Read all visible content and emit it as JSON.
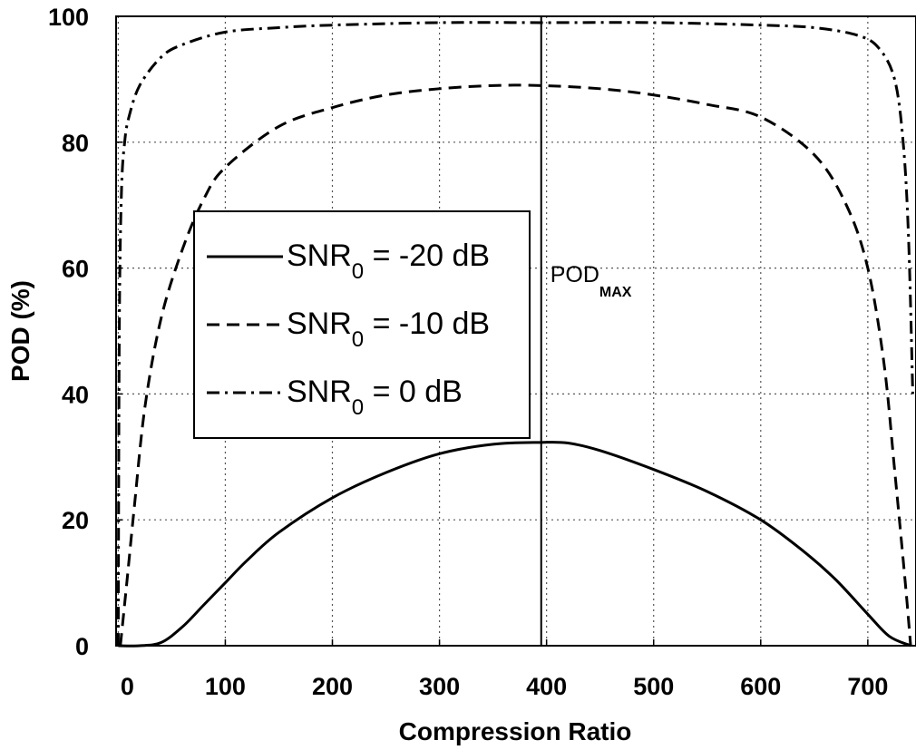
{
  "chart_data": {
    "type": "line",
    "xlabel": "Compression Ratio",
    "ylabel": "POD (%)",
    "xlim": [
      -2,
      745
    ],
    "ylim": [
      0,
      100
    ],
    "xticks": [
      0,
      100,
      200,
      300,
      400,
      500,
      600,
      700
    ],
    "yticks": [
      0,
      20,
      40,
      60,
      80,
      100
    ],
    "grid": true,
    "legend_position": "center-left",
    "series": [
      {
        "name": "SNR0 = -20 dB",
        "label_main": "SNR",
        "label_sub": "0",
        "label_rest": " = -20 dB",
        "style": "solid",
        "color": "#000000",
        "x": [
          0,
          20,
          40,
          60,
          80,
          100,
          120,
          150,
          200,
          250,
          300,
          350,
          395,
          420,
          450,
          500,
          550,
          600,
          640,
          670,
          700,
          720,
          740
        ],
        "y": [
          0,
          0,
          0.5,
          3,
          6.5,
          10,
          13.5,
          18,
          23.5,
          27.5,
          30.5,
          32,
          32.3,
          32.2,
          31,
          28,
          24.5,
          20,
          15,
          10.5,
          5,
          1.5,
          0
        ]
      },
      {
        "name": "SNR0 = -10 dB",
        "label_main": "SNR",
        "label_sub": "0",
        "label_rest": " = -10 dB",
        "style": "dashed",
        "color": "#000000",
        "x": [
          2,
          8,
          15,
          25,
          40,
          60,
          80,
          100,
          150,
          200,
          250,
          300,
          350,
          395,
          450,
          500,
          550,
          600,
          650,
          680,
          700,
          715,
          725,
          735,
          740
        ],
        "y": [
          0,
          10,
          22,
          38,
          52,
          63,
          71,
          76,
          82.5,
          85.5,
          87.5,
          88.5,
          89,
          89,
          88.5,
          87.5,
          86,
          84,
          78,
          70,
          60,
          45,
          28,
          10,
          0
        ]
      },
      {
        "name": "SNR0 = 0 dB",
        "label_main": "SNR",
        "label_sub": "0",
        "label_rest": " = 0 dB",
        "style": "dashdot",
        "color": "#000000",
        "x": [
          0,
          1,
          3,
          6,
          10,
          20,
          40,
          60,
          100,
          150,
          200,
          300,
          400,
          500,
          600,
          650,
          690,
          710,
          725,
          733,
          738,
          742
        ],
        "y": [
          0,
          50,
          72,
          80,
          84,
          89,
          93.5,
          95.5,
          97.5,
          98.2,
          98.6,
          99,
          99,
          99,
          98.6,
          98.2,
          97,
          95,
          90,
          80,
          65,
          40
        ]
      }
    ],
    "annotations": [
      {
        "type": "vline",
        "x": 395,
        "label_main": "POD",
        "label_sub": "MAX"
      }
    ]
  }
}
